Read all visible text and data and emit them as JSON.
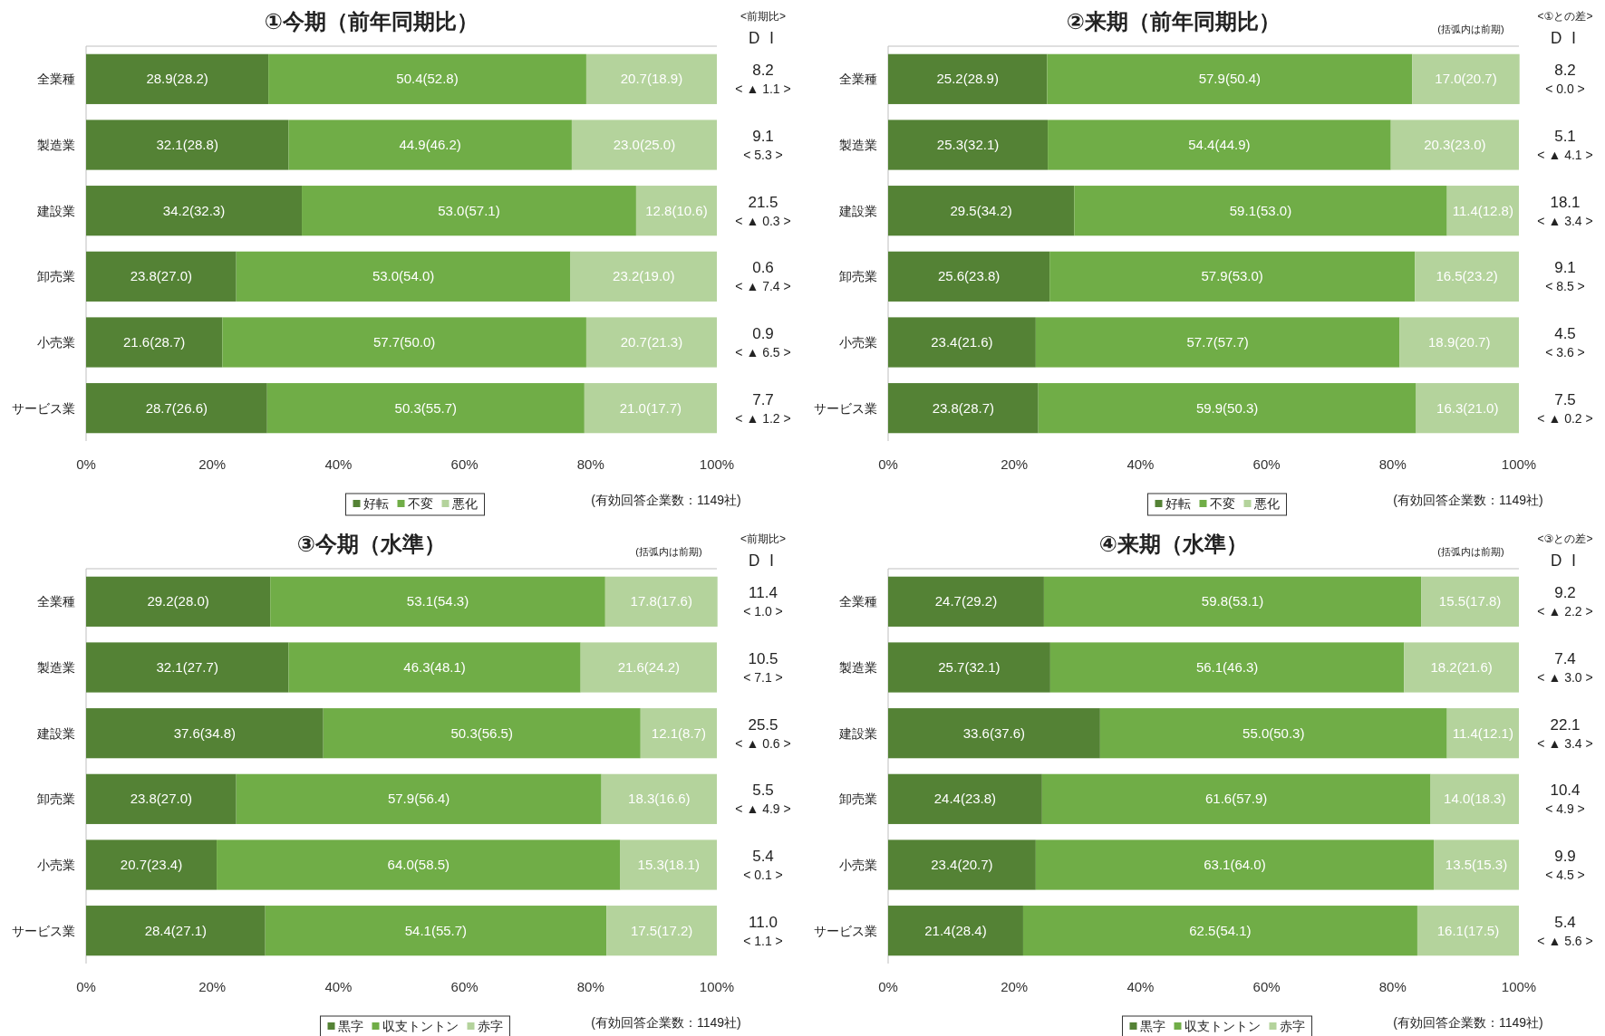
{
  "chart_data": [
    {
      "type": "bar",
      "orientation": "horizontal",
      "stacked": true,
      "title": "①今期（前年同期比）",
      "categories": [
        "全業種",
        "製造業",
        "建設業",
        "卸売業",
        "小売業",
        "サービス業"
      ],
      "xlim": [
        0,
        100
      ],
      "xticks": [
        {
          "value": 0,
          "label": "0%"
        },
        {
          "value": 20,
          "label": "20%"
        },
        {
          "value": 40,
          "label": "40%"
        },
        {
          "value": 60,
          "label": "60%"
        },
        {
          "value": 80,
          "label": "80%"
        },
        {
          "value": 100,
          "label": "100%"
        }
      ],
      "legend": "bottom",
      "series": [
        {
          "name": "好転",
          "color": "#548235",
          "values": [
            28.9,
            32.1,
            34.2,
            23.8,
            21.6,
            28.7
          ],
          "value_labels": [
            "28.9(28.2)",
            "32.1(28.8)",
            "34.2(32.3)",
            "23.8(27.0)",
            "21.6(28.7)",
            "28.7(26.6)"
          ]
        },
        {
          "name": "不変",
          "color": "#70ad47",
          "values": [
            50.4,
            44.9,
            53.0,
            53.0,
            57.7,
            50.3
          ],
          "value_labels": [
            "50.4(52.8)",
            "44.9(46.2)",
            "53.0(57.1)",
            "53.0(54.0)",
            "57.7(50.0)",
            "50.3(55.7)"
          ]
        },
        {
          "name": "悪化",
          "color": "#b4d39c",
          "values": [
            20.7,
            23.0,
            12.8,
            23.2,
            20.7,
            21.0
          ],
          "value_labels": [
            "20.7(18.9)",
            "23.0(25.0)",
            "12.8(10.6)",
            "23.2(19.0)",
            "20.7(21.3)",
            "21.0(17.7)"
          ]
        }
      ],
      "annotations": [
        "ＤＩ",
        "8.2",
        "< ▲ 1.1 >",
        "9.1",
        "< 5.3 >",
        "21.5",
        "< ▲ 0.3 >",
        "0.6",
        "< ▲ 7.4 >",
        "0.9",
        "< ▲ 6.5 >",
        "7.7",
        "< ▲ 1.2 >",
        "(有効回答企業数：1149社)",
        "<前期比>"
      ]
    },
    {
      "type": "bar",
      "orientation": "horizontal",
      "stacked": true,
      "title": "②来期（前年同期比）",
      "categories": [
        "全業種",
        "製造業",
        "建設業",
        "卸売業",
        "小売業",
        "サービス業"
      ],
      "xlim": [
        0,
        100
      ],
      "xticks": [
        {
          "value": 0,
          "label": "0%"
        },
        {
          "value": 20,
          "label": "20%"
        },
        {
          "value": 40,
          "label": "40%"
        },
        {
          "value": 60,
          "label": "60%"
        },
        {
          "value": 80,
          "label": "80%"
        },
        {
          "value": 100,
          "label": "100%"
        }
      ],
      "legend": "bottom",
      "series": [
        {
          "name": "好転",
          "color": "#548235",
          "values": [
            25.2,
            25.3,
            29.5,
            25.6,
            23.4,
            23.8
          ],
          "value_labels": [
            "25.2(28.9)",
            "25.3(32.1)",
            "29.5(34.2)",
            "25.6(23.8)",
            "23.4(21.6)",
            "23.8(28.7)"
          ]
        },
        {
          "name": "不変",
          "color": "#70ad47",
          "values": [
            57.9,
            54.4,
            59.1,
            57.9,
            57.7,
            59.9
          ],
          "value_labels": [
            "57.9(50.4)",
            "54.4(44.9)",
            "59.1(53.0)",
            "57.9(53.0)",
            "57.7(57.7)",
            "59.9(50.3)"
          ]
        },
        {
          "name": "悪化",
          "color": "#b4d39c",
          "values": [
            17.0,
            20.3,
            11.4,
            16.5,
            18.9,
            16.3
          ],
          "value_labels": [
            "17.0(20.7)",
            "20.3(23.0)",
            "11.4(12.8)",
            "16.5(23.2)",
            "18.9(20.7)",
            "16.3(21.0)"
          ]
        }
      ],
      "annotations": [
        "ＤＩ",
        "8.2",
        "< 0.0 >",
        "5.1",
        "< ▲ 4.1 >",
        "18.1",
        "< ▲ 3.4 >",
        "9.1",
        "< 8.5 >",
        "4.5",
        "< 3.6 >",
        "7.5",
        "< ▲ 0.2 >",
        "(有効回答企業数：1149社)",
        "<①との差>",
        "(括弧内は前期)"
      ]
    },
    {
      "type": "bar",
      "orientation": "horizontal",
      "stacked": true,
      "title": "③今期（水準）",
      "categories": [
        "全業種",
        "製造業",
        "建設業",
        "卸売業",
        "小売業",
        "サービス業"
      ],
      "xlim": [
        0,
        100
      ],
      "xticks": [
        {
          "value": 0,
          "label": "0%"
        },
        {
          "value": 20,
          "label": "20%"
        },
        {
          "value": 40,
          "label": "40%"
        },
        {
          "value": 60,
          "label": "60%"
        },
        {
          "value": 80,
          "label": "80%"
        },
        {
          "value": 100,
          "label": "100%"
        }
      ],
      "legend": "bottom",
      "series": [
        {
          "name": "黒字",
          "color": "#548235",
          "values": [
            29.2,
            32.1,
            37.6,
            23.8,
            20.7,
            28.4
          ],
          "value_labels": [
            "29.2(28.0)",
            "32.1(27.7)",
            "37.6(34.8)",
            "23.8(27.0)",
            "20.7(23.4)",
            "28.4(27.1)"
          ]
        },
        {
          "name": "収支トントン",
          "color": "#70ad47",
          "values": [
            53.1,
            46.3,
            50.3,
            57.9,
            64.0,
            54.1
          ],
          "value_labels": [
            "53.1(54.3)",
            "46.3(48.1)",
            "50.3(56.5)",
            "57.9(56.4)",
            "64.0(58.5)",
            "54.1(55.7)"
          ]
        },
        {
          "name": "赤字",
          "color": "#b4d39c",
          "values": [
            17.8,
            21.6,
            12.1,
            18.3,
            15.3,
            17.5
          ],
          "value_labels": [
            "17.8(17.6)",
            "21.6(24.2)",
            "12.1(8.7)",
            "18.3(16.6)",
            "15.3(18.1)",
            "17.5(17.2)"
          ]
        }
      ],
      "annotations": [
        "ＤＩ",
        "11.4",
        "< 1.0 >",
        "10.5",
        "< 7.1 >",
        "25.5",
        "< ▲ 0.6 >",
        "5.5",
        "< ▲ 4.9 >",
        "5.4",
        "< 0.1 >",
        "11.0",
        "< 1.1 >",
        "(有効回答企業数：1149社)",
        "<前期比>",
        "(括弧内は前期)"
      ]
    },
    {
      "type": "bar",
      "orientation": "horizontal",
      "stacked": true,
      "title": "④来期（水準）",
      "categories": [
        "全業種",
        "製造業",
        "建設業",
        "卸売業",
        "小売業",
        "サービス業"
      ],
      "xlim": [
        0,
        100
      ],
      "xticks": [
        {
          "value": 0,
          "label": "0%"
        },
        {
          "value": 20,
          "label": "20%"
        },
        {
          "value": 40,
          "label": "40%"
        },
        {
          "value": 60,
          "label": "60%"
        },
        {
          "value": 80,
          "label": "80%"
        },
        {
          "value": 100,
          "label": "100%"
        }
      ],
      "legend": "bottom",
      "series": [
        {
          "name": "黒字",
          "color": "#548235",
          "values": [
            24.7,
            25.7,
            33.6,
            24.4,
            23.4,
            21.4
          ],
          "value_labels": [
            "24.7(29.2)",
            "25.7(32.1)",
            "33.6(37.6)",
            "24.4(23.8)",
            "23.4(20.7)",
            "21.4(28.4)"
          ]
        },
        {
          "name": "収支トントン",
          "color": "#70ad47",
          "values": [
            59.8,
            56.1,
            55.0,
            61.6,
            63.1,
            62.5
          ],
          "value_labels": [
            "59.8(53.1)",
            "56.1(46.3)",
            "55.0(50.3)",
            "61.6(57.9)",
            "63.1(64.0)",
            "62.5(54.1)"
          ]
        },
        {
          "name": "赤字",
          "color": "#b4d39c",
          "values": [
            15.5,
            18.2,
            11.4,
            14.0,
            13.5,
            16.1
          ],
          "value_labels": [
            "15.5(17.8)",
            "18.2(21.6)",
            "11.4(12.1)",
            "14.0(18.3)",
            "13.5(15.3)",
            "16.1(17.5)"
          ]
        }
      ],
      "annotations": [
        "ＤＩ",
        "9.2",
        "< ▲ 2.2 >",
        "7.4",
        "< ▲ 3.0 >",
        "22.1",
        "< ▲ 3.4 >",
        "10.4",
        "< 4.9 >",
        "9.9",
        "< 4.5 >",
        "5.4",
        "< ▲ 5.6 >",
        "(有効回答企業数：1149社)",
        "<③との差>",
        "(括弧内は前期)"
      ]
    }
  ]
}
